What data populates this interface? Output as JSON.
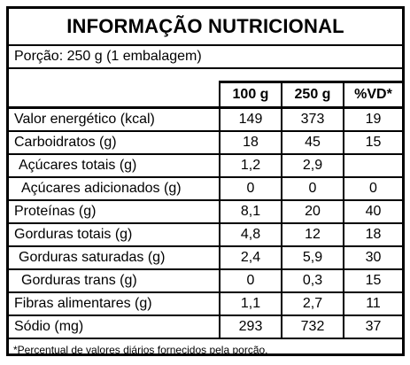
{
  "title": "INFORMAÇÃO NUTRICIONAL",
  "portion": "Porção: 250 g (1 embalagem)",
  "columns": [
    "100 g",
    "250 g",
    "%VD*"
  ],
  "rows": [
    {
      "name": "Valor energético (kcal)",
      "per100": "149",
      "per250": "373",
      "vd": "19"
    },
    {
      "name": "Carboidratos (g)",
      "per100": "18",
      "per250": "45",
      "vd": "15"
    },
    {
      "name": "Açúcares totais (g)",
      "per100": "1,2",
      "per250": "2,9",
      "vd": ""
    },
    {
      "name": "Açúcares adicionados (g)",
      "per100": "0",
      "per250": "0",
      "vd": "0"
    },
    {
      "name": "Proteínas (g)",
      "per100": "8,1",
      "per250": "20",
      "vd": "40"
    },
    {
      "name": "Gorduras totais (g)",
      "per100": "4,8",
      "per250": "12",
      "vd": "18"
    },
    {
      "name": "Gorduras saturadas (g)",
      "per100": "2,4",
      "per250": "5,9",
      "vd": "30"
    },
    {
      "name": "Gorduras trans (g)",
      "per100": "0",
      "per250": "0,3",
      "vd": "15"
    },
    {
      "name": "Fibras alimentares (g)",
      "per100": "1,1",
      "per250": "2,7",
      "vd": "11"
    },
    {
      "name": "Sódio (mg)",
      "per100": "293",
      "per250": "732",
      "vd": "37"
    }
  ],
  "footnote": "*Percentual de valores diários fornecidos pela porção."
}
